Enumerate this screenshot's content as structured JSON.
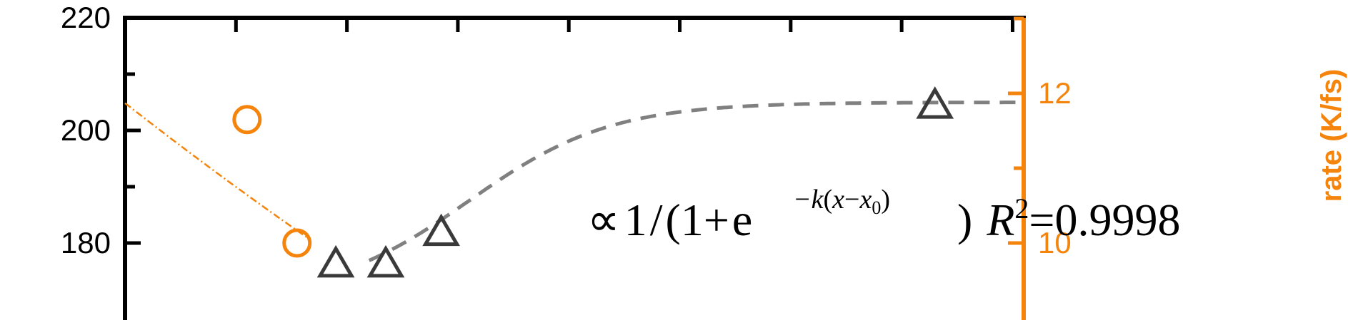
{
  "chart_data": {
    "type": "scatter",
    "title": "",
    "xlabel": "",
    "ylabel_left": "",
    "ylabel_right_visible": "rate (K/fs)",
    "left_axis": {
      "ylim": [
        180,
        220
      ],
      "ticks": [
        "220",
        "200",
        "180"
      ],
      "tick_values": [
        220,
        200,
        180
      ],
      "minor_values": [
        210,
        190
      ]
    },
    "right_axis": {
      "ylim": [
        9.9,
        13.3
      ],
      "ticks": [
        "12",
        "10"
      ],
      "tick_values": [
        12,
        10
      ],
      "minor_values": [
        11,
        13
      ]
    },
    "x_major_ticks": [
      2,
      4,
      6,
      8,
      10,
      12,
      14,
      16
    ],
    "xlim": [
      0,
      16.2
    ],
    "series": [
      {
        "marker": "circle",
        "axis": "right",
        "color": "#f5840c",
        "points": [
          {
            "x": 2.2,
            "y": 11.65
          },
          {
            "x": 3.1,
            "y": 10.0
          }
        ]
      },
      {
        "marker": "triangle",
        "axis": "left",
        "color": "#3a3a3a",
        "points": [
          {
            "x": 3.8,
            "y": 176.6
          },
          {
            "x": 4.7,
            "y": 176.6
          },
          {
            "x": 5.7,
            "y": 182.2
          },
          {
            "x": 14.6,
            "y": 204.8
          }
        ]
      }
    ],
    "fits": [
      {
        "style": "dashed",
        "color": "#808080",
        "axis": "left",
        "form": "logistic"
      },
      {
        "style": "dash-dot",
        "color": "#f5840c",
        "axis": "right"
      }
    ],
    "annotation": {
      "proportional": "∝",
      "one": "1",
      "slash": "/",
      "open_paren": "(",
      "one_plus": "1+",
      "e": "e",
      "exponent_paren_open": "(",
      "exponent_k": "−k",
      "exponent_x": "x",
      "exponent_minus": "−",
      "exponent_x0": "x",
      "exponent_sub0": "0",
      "exponent_paren_close": ")",
      "close_paren": ")",
      "r": "R",
      "r_sup": "2",
      "r_value": "=0.9998"
    },
    "colors": {
      "primary": "#000000",
      "secondary": "#f5840c",
      "fit_gray": "#808080",
      "marker_gray": "#3a3a3a"
    }
  }
}
